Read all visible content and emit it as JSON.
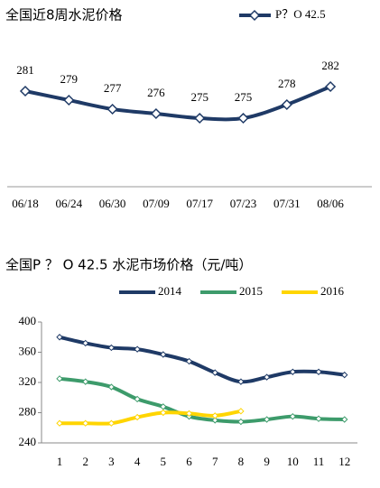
{
  "chart_data": [
    {
      "type": "line",
      "title": "全国近8周水泥价格",
      "categories": [
        "06/18",
        "06/24",
        "06/30",
        "07/09",
        "07/17",
        "07/23",
        "07/31",
        "08/06"
      ],
      "series": [
        {
          "name": "P？O 42.5",
          "color": "#1f3a66",
          "values": [
            281,
            279,
            277,
            276,
            275,
            275,
            278,
            282
          ]
        }
      ],
      "legend": "top-right"
    },
    {
      "type": "line",
      "title": "全国P ？ O 42.5 水泥市场价格（元/吨）",
      "categories": [
        "1",
        "2",
        "3",
        "4",
        "5",
        "6",
        "7",
        "8",
        "9",
        "10",
        "11",
        "12"
      ],
      "series": [
        {
          "name": "2014",
          "color": "#1f3a66",
          "values": [
            380,
            372,
            366,
            364,
            357,
            348,
            333,
            321,
            327,
            334,
            334,
            330
          ]
        },
        {
          "name": "2015",
          "color": "#3d9b6b",
          "values": [
            325,
            321,
            314,
            298,
            288,
            275,
            270,
            268,
            271,
            275,
            272,
            271
          ]
        },
        {
          "name": "2016",
          "color": "#ffd500",
          "values": [
            266,
            266,
            266,
            274,
            280,
            279,
            276,
            282,
            null,
            null,
            null,
            null
          ]
        }
      ],
      "ylim": [
        240,
        400
      ],
      "yticks": [
        240,
        280,
        320,
        360,
        400
      ],
      "legend": "top"
    }
  ]
}
